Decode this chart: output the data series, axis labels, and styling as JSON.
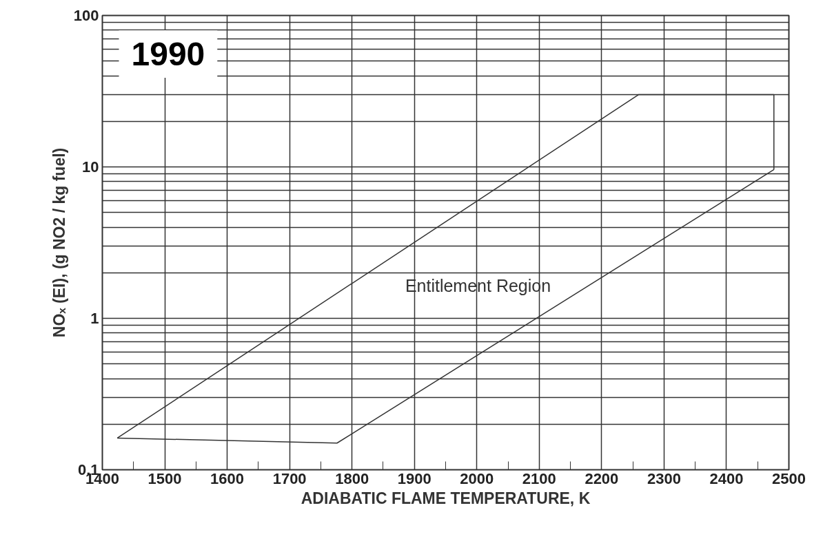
{
  "chart_data": {
    "type": "line",
    "xlabel": "ADIABATIC FLAME TEMPERATURE, K",
    "ylabel": "NOₓ (EI), (g NO2 / kg fuel)",
    "x": [
      1424,
      1776,
      2476
    ],
    "series": [
      {
        "color": "#333333",
        "values": [
          0.162,
          0.15,
          9.6
        ]
      },
      {
        "color": "#333333",
        "x": [
          1424,
          2259,
          2476
        ],
        "values": [
          0.162,
          30,
          30
        ]
      },
      {
        "color": "#333333",
        "x": [
          2476,
          2476
        ],
        "values": [
          9.6,
          30
        ]
      }
    ],
    "log": "y",
    "xlim": [
      1400,
      2500
    ],
    "ylim": [
      0.1,
      100
    ],
    "xticks": [
      1400,
      {
        "value": 1450,
        "label": null
      },
      1500,
      {
        "value": 1550,
        "label": null
      },
      1600,
      {
        "value": 1650,
        "label": null
      },
      1700,
      {
        "value": 1750,
        "label": null
      },
      1800,
      {
        "value": 1850,
        "label": null
      },
      1900,
      {
        "value": 1950,
        "label": null
      },
      2000,
      {
        "value": 2050,
        "label": null
      },
      2100,
      {
        "value": 2150,
        "label": null
      },
      2200,
      {
        "value": 2250,
        "label": null
      },
      2300,
      {
        "value": 2350,
        "label": null
      },
      2400,
      {
        "value": 2450,
        "label": null
      },
      2500
    ],
    "yticks": [
      0.1,
      {
        "value": 0.2,
        "label": null
      },
      {
        "value": 0.3,
        "label": null
      },
      {
        "value": 0.4,
        "label": null
      },
      {
        "value": 0.5,
        "label": null
      },
      {
        "value": 0.6,
        "label": null
      },
      {
        "value": 0.7,
        "label": null
      },
      {
        "value": 0.8,
        "label": null
      },
      {
        "value": 0.9,
        "label": null
      },
      1,
      {
        "value": 2,
        "label": null
      },
      {
        "value": 3,
        "label": null
      },
      {
        "value": 4,
        "label": null
      },
      {
        "value": 5,
        "label": null
      },
      {
        "value": 6,
        "label": null
      },
      {
        "value": 7,
        "label": null
      },
      {
        "value": 8,
        "label": null
      },
      {
        "value": 9,
        "label": null
      },
      10,
      {
        "value": 20,
        "label": null
      },
      {
        "value": 30,
        "label": null
      },
      {
        "value": 40,
        "label": null
      },
      {
        "value": 50,
        "label": null
      },
      {
        "value": 60,
        "label": null
      },
      {
        "value": 70,
        "label": null
      },
      {
        "value": 80,
        "label": null
      },
      {
        "value": 90,
        "label": null
      },
      100
    ],
    "grid": true,
    "marker": "none",
    "line_style": "solid",
    "annotations": [
      "Entitlement Region",
      "1990"
    ]
  }
}
